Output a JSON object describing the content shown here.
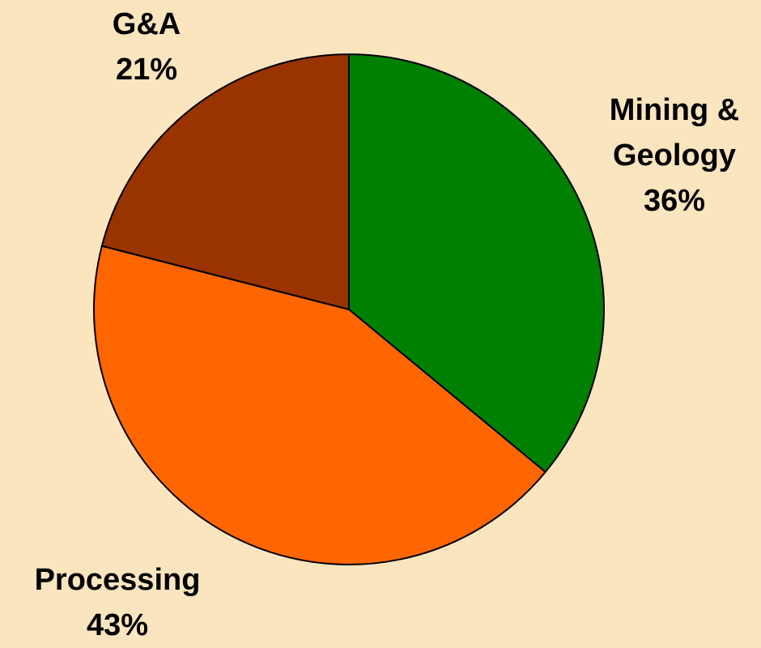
{
  "chart_data": {
    "type": "pie",
    "categories": [
      "Mining & Geology",
      "Processing",
      "G&A"
    ],
    "values": [
      36,
      43,
      21
    ],
    "value_labels": [
      "36%",
      "43%",
      "21%"
    ],
    "colors": [
      "#008000",
      "#ff6600",
      "#993300"
    ],
    "start_angle": 0,
    "direction": "clockwise"
  }
}
